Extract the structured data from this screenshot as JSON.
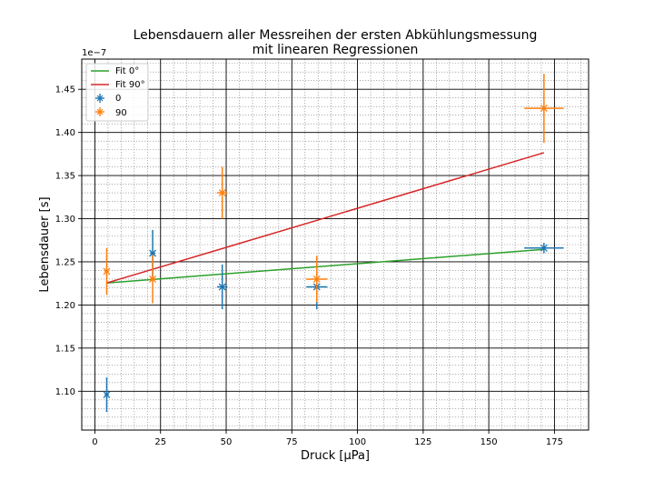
{
  "chart_data": {
    "type": "scatter",
    "title_line1": "Lebensdauern aller Messreihen der ersten Abkühlungsmessung",
    "title_line2": "mit linearen Regressionen",
    "xlabel": "Druck [μPa]",
    "ylabel": "Lebensdauer [s]",
    "y_offset_label": "1e−7",
    "xlim": [
      -5,
      188
    ],
    "ylim": [
      1.055,
      1.485
    ],
    "x_ticks": [
      0,
      25,
      50,
      75,
      100,
      125,
      150,
      175
    ],
    "y_ticks": [
      1.1,
      1.15,
      1.2,
      1.25,
      1.3,
      1.35,
      1.4,
      1.45
    ],
    "x_tick_labels": [
      "0",
      "25",
      "50",
      "75",
      "100",
      "125",
      "150",
      "175"
    ],
    "y_tick_labels": [
      "1.10",
      "1.15",
      "1.20",
      "1.25",
      "1.30",
      "1.35",
      "1.40",
      "1.45"
    ],
    "grid": "major and minor",
    "legend_position": "top-left",
    "legend_labels": [
      "Fit 0°",
      "Fit 90°",
      "0",
      "90"
    ],
    "fits": [
      {
        "name": "Fit 0°",
        "color": "#2ca02c",
        "x": [
          4.5,
          171
        ],
        "y": [
          1.2255,
          1.2645
        ]
      },
      {
        "name": "Fit 90°",
        "color": "#d62728",
        "x": [
          4.5,
          171
        ],
        "y": [
          1.2255,
          1.3765
        ]
      }
    ],
    "series": [
      {
        "name": "0",
        "color": "#1f77b4",
        "points": [
          {
            "x": 4.5,
            "y": 1.096,
            "xerr": 0.8,
            "yerr": 0.02
          },
          {
            "x": 22,
            "y": 1.26,
            "xerr": 1.0,
            "yerr": 0.027
          },
          {
            "x": 48.5,
            "y": 1.221,
            "xerr": 2.0,
            "yerr": 0.026
          },
          {
            "x": 84.5,
            "y": 1.221,
            "xerr": 4.0,
            "yerr": 0.026
          },
          {
            "x": 171,
            "y": 1.266,
            "xerr": 7.5,
            "yerr": 0.006
          }
        ]
      },
      {
        "name": "90",
        "color": "#ff7f0e",
        "points": [
          {
            "x": 4.5,
            "y": 1.239,
            "xerr": 0.8,
            "yerr": 0.027
          },
          {
            "x": 22,
            "y": 1.23,
            "xerr": 1.0,
            "yerr": 0.028
          },
          {
            "x": 48.5,
            "y": 1.33,
            "xerr": 2.0,
            "yerr": 0.03
          },
          {
            "x": 84.5,
            "y": 1.23,
            "xerr": 4.0,
            "yerr": 0.027
          },
          {
            "x": 171,
            "y": 1.428,
            "xerr": 7.5,
            "yerr": 0.04
          }
        ]
      }
    ]
  }
}
